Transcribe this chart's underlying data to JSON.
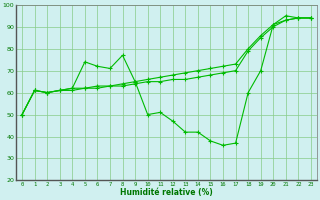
{
  "x": [
    0,
    1,
    2,
    3,
    4,
    5,
    6,
    7,
    8,
    9,
    10,
    11,
    12,
    13,
    14,
    15,
    16,
    17,
    18,
    19,
    20,
    21,
    22,
    23
  ],
  "line1_measured": [
    50,
    61,
    60,
    61,
    62,
    74,
    72,
    71,
    77,
    65,
    50,
    51,
    47,
    42,
    42,
    38,
    36,
    37,
    60,
    70,
    91,
    95,
    94,
    94
  ],
  "line2_upper": [
    50,
    61,
    60,
    61,
    62,
    62,
    63,
    63,
    64,
    65,
    66,
    67,
    68,
    69,
    70,
    71,
    72,
    73,
    80,
    86,
    91,
    93,
    94,
    94
  ],
  "line3_lower": [
    50,
    61,
    60,
    61,
    61,
    62,
    62,
    63,
    63,
    64,
    65,
    65,
    66,
    66,
    67,
    68,
    69,
    70,
    79,
    85,
    90,
    93,
    94,
    94
  ],
  "line_color": "#00bb00",
  "bg_color": "#d0f0f0",
  "grid_color": "#88cc88",
  "xlabel": "Humidité relative (%)",
  "xlabel_color": "#007700",
  "tick_color": "#007700",
  "ylim": [
    20,
    100
  ],
  "yticks": [
    20,
    30,
    40,
    50,
    60,
    70,
    80,
    90,
    100
  ],
  "figwidth": 3.2,
  "figheight": 2.0,
  "dpi": 100
}
